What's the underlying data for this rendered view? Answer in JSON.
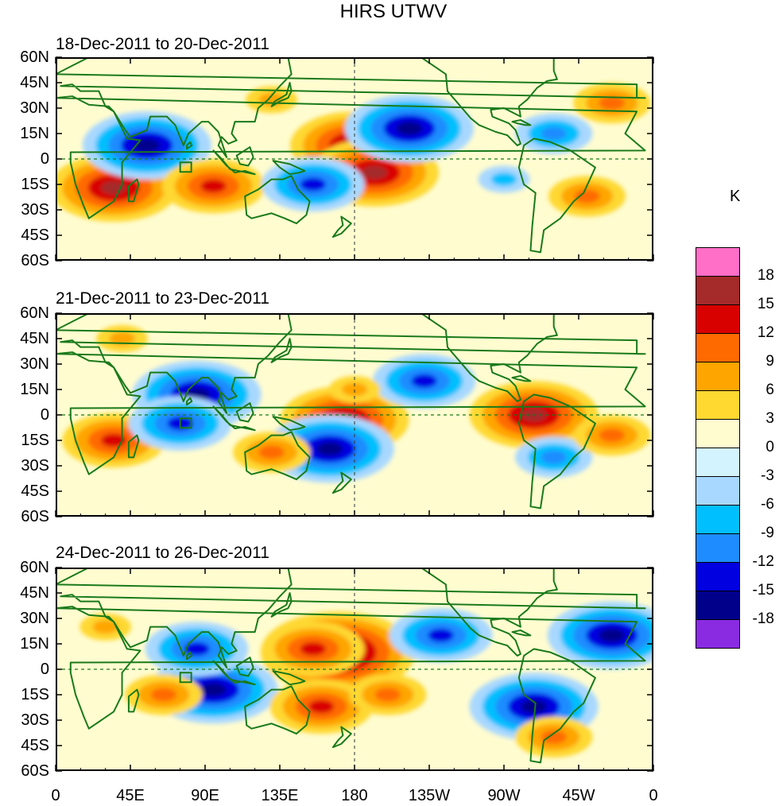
{
  "chart_data": {
    "type": "heatmap",
    "title": "HIRS UTWV",
    "colorbar_title": "K",
    "colorbar_levels": [
      "18",
      "15",
      "12",
      "9",
      "6",
      "3",
      "0",
      "-3",
      "-6",
      "-9",
      "-12",
      "-15",
      "-18"
    ],
    "colorbar_colors": [
      "#ff6ec7",
      "#a52a2a",
      "#d90000",
      "#ff6a00",
      "#ffa500",
      "#ffd830",
      "#fffcd0",
      "#d3f4ff",
      "#a8d8ff",
      "#00bfff",
      "#1e8cff",
      "#0000e0",
      "#00008b",
      "#8a2be2"
    ],
    "lat_labels": [
      "60N",
      "45N",
      "30N",
      "15N",
      "0",
      "15S",
      "30S",
      "45S",
      "60S"
    ],
    "lon_labels": [
      "0",
      "45E",
      "90E",
      "135E",
      "180",
      "135W",
      "90W",
      "45W",
      "0"
    ],
    "x_range": [
      0,
      360
    ],
    "y_range": [
      -60,
      60
    ],
    "panels": [
      {
        "title": "18-Dec-2011 to 20-Dec-2011",
        "anomalies": [
          {
            "lon": 35,
            "lat": -17,
            "value": 15
          },
          {
            "lon": 55,
            "lat": 8,
            "value": -15
          },
          {
            "lon": 95,
            "lat": -16,
            "value": 12
          },
          {
            "lon": 180,
            "lat": 8,
            "value": 15
          },
          {
            "lon": 192,
            "lat": -8,
            "value": 15
          },
          {
            "lon": 213,
            "lat": 18,
            "value": -15
          },
          {
            "lon": 155,
            "lat": -15,
            "value": -12
          },
          {
            "lon": 335,
            "lat": 33,
            "value": 9
          },
          {
            "lon": 300,
            "lat": 15,
            "value": -9
          },
          {
            "lon": 130,
            "lat": 35,
            "value": 6
          },
          {
            "lon": 320,
            "lat": -22,
            "value": 9
          },
          {
            "lon": 270,
            "lat": -12,
            "value": -6
          }
        ]
      },
      {
        "title": "21-Dec-2011 to 23-Dec-2011",
        "anomalies": [
          {
            "lon": 85,
            "lat": 12,
            "value": -15
          },
          {
            "lon": 174,
            "lat": -3,
            "value": 15
          },
          {
            "lon": 288,
            "lat": 0,
            "value": 15
          },
          {
            "lon": 222,
            "lat": 20,
            "value": -12
          },
          {
            "lon": 165,
            "lat": -20,
            "value": -15
          },
          {
            "lon": 35,
            "lat": -15,
            "value": 12
          },
          {
            "lon": 75,
            "lat": -5,
            "value": -12
          },
          {
            "lon": 130,
            "lat": -22,
            "value": 9
          },
          {
            "lon": 300,
            "lat": -25,
            "value": -9
          },
          {
            "lon": 180,
            "lat": 15,
            "value": 6
          },
          {
            "lon": 40,
            "lat": 45,
            "value": 6
          },
          {
            "lon": 335,
            "lat": -12,
            "value": 9
          }
        ]
      },
      {
        "title": "24-Dec-2011 to 26-Dec-2011",
        "anomalies": [
          {
            "lon": 170,
            "lat": 10,
            "value": 18
          },
          {
            "lon": 155,
            "lat": 12,
            "value": 12
          },
          {
            "lon": 95,
            "lat": -12,
            "value": -15
          },
          {
            "lon": 85,
            "lat": 12,
            "value": -12
          },
          {
            "lon": 288,
            "lat": -22,
            "value": -15
          },
          {
            "lon": 232,
            "lat": 20,
            "value": -12
          },
          {
            "lon": 335,
            "lat": 20,
            "value": -15
          },
          {
            "lon": 65,
            "lat": -15,
            "value": 9
          },
          {
            "lon": 160,
            "lat": -22,
            "value": 12
          },
          {
            "lon": 30,
            "lat": 25,
            "value": 6
          },
          {
            "lon": 200,
            "lat": -15,
            "value": 9
          },
          {
            "lon": 300,
            "lat": -40,
            "value": 9
          }
        ]
      }
    ]
  }
}
